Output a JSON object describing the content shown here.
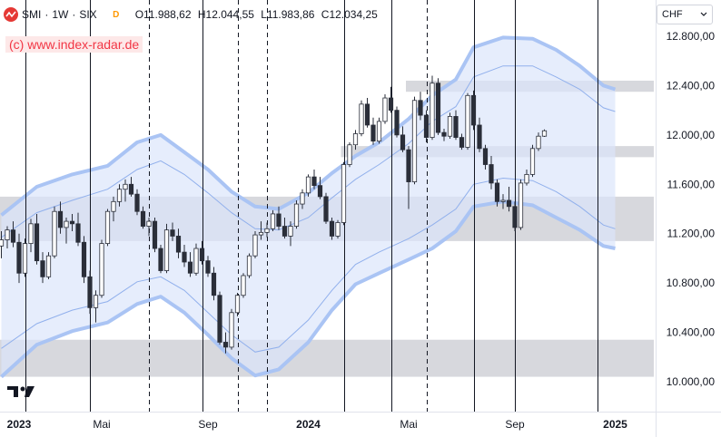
{
  "header": {
    "symbol": "SMI",
    "interval": "1W",
    "exchange": "SIX",
    "delayed_badge": "D",
    "open": "O11.988,62",
    "high": "H12.044,55",
    "low": "L11.983,86",
    "close": "C12.034,25"
  },
  "copyright": "(c) www.index-radar.de",
  "currency": {
    "label": "CHF"
  },
  "colors": {
    "band_fill": "#dbe6fb",
    "band_edge": "#aac4f4",
    "band_inner": "#91b0ec",
    "zone": "#c9cbd2",
    "candle_up": "#ffffff",
    "candle_down": "#2a2e39",
    "accent_red": "#f23645"
  },
  "chart_data": {
    "type": "candlestick",
    "title": "",
    "y_axis": {
      "range": [
        9800,
        13100
      ],
      "ticks": [
        10000,
        10400,
        10800,
        11200,
        11600,
        12000,
        12400,
        12800
      ],
      "tick_labels": [
        "10.000,00",
        "10.400,00",
        "10.800,00",
        "11.200,00",
        "11.600,00",
        "12.000,00",
        "12.400,00",
        "12.800,00"
      ]
    },
    "x_axis": {
      "ticks": [
        {
          "week": 3,
          "label": "2023",
          "bold": true
        },
        {
          "week": 17,
          "label": "Mai",
          "bold": false
        },
        {
          "week": 35,
          "label": "Sep",
          "bold": false
        },
        {
          "week": 52,
          "label": "2024",
          "bold": true
        },
        {
          "week": 69,
          "label": "Mai",
          "bold": false
        },
        {
          "week": 87,
          "label": "Sep",
          "bold": false
        },
        {
          "week": 104,
          "label": "2025",
          "bold": true
        }
      ]
    },
    "vertical_lines": [
      {
        "week": 4,
        "style": "solid"
      },
      {
        "week": 15,
        "style": "solid"
      },
      {
        "week": 25,
        "style": "dashed"
      },
      {
        "week": 34,
        "style": "solid"
      },
      {
        "week": 40,
        "style": "dashed"
      },
      {
        "week": 45,
        "style": "dashed"
      },
      {
        "week": 58,
        "style": "solid"
      },
      {
        "week": 66,
        "style": "solid"
      },
      {
        "week": 72,
        "style": "dashed"
      },
      {
        "week": 80,
        "style": "solid"
      },
      {
        "week": 87,
        "style": "solid"
      },
      {
        "week": 101,
        "style": "solid"
      }
    ],
    "zones": [
      {
        "from_week": 0,
        "to_week": 114,
        "low": 10040,
        "high": 10340
      },
      {
        "from_week": 0,
        "to_week": 114,
        "low": 11140,
        "high": 11500
      },
      {
        "from_week": 58,
        "to_week": 114,
        "low": 11820,
        "high": 11910
      },
      {
        "from_week": 69,
        "to_week": 114,
        "low": 12350,
        "high": 12440
      }
    ],
    "envelope": {
      "upper": [
        [
          0,
          11350
        ],
        [
          6,
          11580
        ],
        [
          12,
          11680
        ],
        [
          18,
          11750
        ],
        [
          23,
          11940
        ],
        [
          27,
          12000
        ],
        [
          31,
          11860
        ],
        [
          35,
          11720
        ],
        [
          39,
          11540
        ],
        [
          43,
          11420
        ],
        [
          47,
          11400
        ],
        [
          52,
          11530
        ],
        [
          56,
          11690
        ],
        [
          60,
          11830
        ],
        [
          64,
          11940
        ],
        [
          69,
          12130
        ],
        [
          73,
          12320
        ],
        [
          77,
          12450
        ],
        [
          80,
          12710
        ],
        [
          85,
          12790
        ],
        [
          90,
          12780
        ],
        [
          94,
          12690
        ],
        [
          98,
          12560
        ],
        [
          102,
          12400
        ],
        [
          104,
          12370
        ]
      ],
      "upper_inner": [
        [
          0,
          11170
        ],
        [
          6,
          11370
        ],
        [
          12,
          11470
        ],
        [
          18,
          11560
        ],
        [
          23,
          11720
        ],
        [
          27,
          11790
        ],
        [
          31,
          11680
        ],
        [
          35,
          11530
        ],
        [
          39,
          11370
        ],
        [
          43,
          11240
        ],
        [
          47,
          11230
        ],
        [
          52,
          11330
        ],
        [
          56,
          11490
        ],
        [
          60,
          11640
        ],
        [
          64,
          11760
        ],
        [
          69,
          11930
        ],
        [
          73,
          12110
        ],
        [
          77,
          12230
        ],
        [
          80,
          12470
        ],
        [
          85,
          12560
        ],
        [
          90,
          12560
        ],
        [
          94,
          12470
        ],
        [
          98,
          12370
        ],
        [
          102,
          12220
        ],
        [
          104,
          12190
        ]
      ],
      "lower_inner": [
        [
          0,
          10270
        ],
        [
          6,
          10470
        ],
        [
          12,
          10580
        ],
        [
          18,
          10650
        ],
        [
          23,
          10810
        ],
        [
          27,
          10850
        ],
        [
          31,
          10740
        ],
        [
          35,
          10560
        ],
        [
          39,
          10380
        ],
        [
          43,
          10240
        ],
        [
          47,
          10280
        ],
        [
          52,
          10500
        ],
        [
          56,
          10740
        ],
        [
          60,
          10950
        ],
        [
          64,
          11050
        ],
        [
          69,
          11160
        ],
        [
          73,
          11270
        ],
        [
          77,
          11400
        ],
        [
          80,
          11600
        ],
        [
          85,
          11650
        ],
        [
          90,
          11630
        ],
        [
          94,
          11540
        ],
        [
          98,
          11420
        ],
        [
          102,
          11270
        ],
        [
          104,
          11240
        ]
      ],
      "lower": [
        [
          0,
          10040
        ],
        [
          6,
          10300
        ],
        [
          12,
          10410
        ],
        [
          18,
          10480
        ],
        [
          23,
          10630
        ],
        [
          27,
          10690
        ],
        [
          31,
          10560
        ],
        [
          35,
          10380
        ],
        [
          39,
          10190
        ],
        [
          43,
          10050
        ],
        [
          47,
          10100
        ],
        [
          52,
          10320
        ],
        [
          56,
          10580
        ],
        [
          60,
          10790
        ],
        [
          64,
          10880
        ],
        [
          69,
          10990
        ],
        [
          73,
          11080
        ],
        [
          77,
          11220
        ],
        [
          80,
          11420
        ],
        [
          85,
          11460
        ],
        [
          90,
          11430
        ],
        [
          94,
          11330
        ],
        [
          98,
          11230
        ],
        [
          102,
          11100
        ],
        [
          104,
          11080
        ]
      ]
    },
    "candles": [
      [
        11100,
        11220,
        11000,
        11150
      ],
      [
        11150,
        11260,
        11080,
        11230
      ],
      [
        11230,
        11300,
        11090,
        11130
      ],
      [
        11130,
        11200,
        10800,
        10880
      ],
      [
        10880,
        11160,
        10850,
        11120
      ],
      [
        11120,
        11320,
        11050,
        11280
      ],
      [
        11280,
        11360,
        10950,
        10980
      ],
      [
        10980,
        11050,
        10800,
        10850
      ],
      [
        10850,
        11050,
        10830,
        11020
      ],
      [
        11020,
        11420,
        11000,
        11380
      ],
      [
        11380,
        11460,
        11200,
        11250
      ],
      [
        11250,
        11330,
        11120,
        11300
      ],
      [
        11300,
        11360,
        11220,
        11280
      ],
      [
        11280,
        11370,
        11100,
        11130
      ],
      [
        11130,
        11180,
        10800,
        10850
      ],
      [
        10850,
        10900,
        10550,
        10600
      ],
      [
        10600,
        10740,
        10480,
        10700
      ],
      [
        10700,
        11150,
        10680,
        11120
      ],
      [
        11120,
        11400,
        11100,
        11380
      ],
      [
        11380,
        11500,
        11300,
        11460
      ],
      [
        11460,
        11600,
        11420,
        11560
      ],
      [
        11560,
        11640,
        11460,
        11600
      ],
      [
        11600,
        11660,
        11500,
        11520
      ],
      [
        11520,
        11560,
        11350,
        11380
      ],
      [
        11380,
        11420,
        11240,
        11260
      ],
      [
        11260,
        11330,
        11180,
        11300
      ],
      [
        11300,
        11330,
        11050,
        11080
      ],
      [
        11080,
        11110,
        10880,
        10900
      ],
      [
        10900,
        11280,
        10880,
        11230
      ],
      [
        11230,
        11290,
        11140,
        11180
      ],
      [
        11180,
        11240,
        11000,
        11050
      ],
      [
        11050,
        11110,
        10930,
        10970
      ],
      [
        10970,
        11050,
        10850,
        10880
      ],
      [
        10880,
        11120,
        10860,
        11080
      ],
      [
        11080,
        11140,
        10950,
        10980
      ],
      [
        10980,
        11020,
        10850,
        10880
      ],
      [
        10880,
        10930,
        10660,
        10700
      ],
      [
        10700,
        10730,
        10300,
        10320
      ],
      [
        10320,
        10400,
        10230,
        10280
      ],
      [
        10280,
        10590,
        10260,
        10560
      ],
      [
        10560,
        10720,
        10530,
        10700
      ],
      [
        10700,
        10880,
        10680,
        10860
      ],
      [
        10860,
        11040,
        10840,
        11020
      ],
      [
        11020,
        11220,
        11000,
        11190
      ],
      [
        11190,
        11300,
        11150,
        11210
      ],
      [
        11210,
        11290,
        11170,
        11240
      ],
      [
        11240,
        11390,
        11220,
        11360
      ],
      [
        11360,
        11420,
        11230,
        11260
      ],
      [
        11260,
        11330,
        11160,
        11180
      ],
      [
        11180,
        11300,
        11100,
        11260
      ],
      [
        11260,
        11470,
        11240,
        11440
      ],
      [
        11440,
        11560,
        11400,
        11530
      ],
      [
        11530,
        11680,
        11500,
        11660
      ],
      [
        11660,
        11720,
        11560,
        11590
      ],
      [
        11590,
        11660,
        11480,
        11500
      ],
      [
        11500,
        11530,
        11280,
        11300
      ],
      [
        11300,
        11330,
        11150,
        11180
      ],
      [
        11180,
        11310,
        11160,
        11290
      ],
      [
        11290,
        11780,
        11270,
        11760
      ],
      [
        11760,
        11940,
        11740,
        11920
      ],
      [
        11920,
        12040,
        11880,
        12010
      ],
      [
        12010,
        12280,
        11990,
        12250
      ],
      [
        12250,
        12300,
        12060,
        12080
      ],
      [
        12080,
        12140,
        11920,
        11950
      ],
      [
        11950,
        12140,
        11930,
        12110
      ],
      [
        12110,
        12330,
        12090,
        12300
      ],
      [
        12300,
        12390,
        12180,
        12200
      ],
      [
        12200,
        12230,
        11980,
        12000
      ],
      [
        12000,
        12070,
        11860,
        11880
      ],
      [
        11880,
        11910,
        11400,
        11620
      ],
      [
        11620,
        12310,
        11600,
        12280
      ],
      [
        12280,
        12350,
        12120,
        12160
      ],
      [
        12160,
        12200,
        11940,
        11980
      ],
      [
        11980,
        12480,
        11960,
        12420
      ],
      [
        12420,
        12460,
        12000,
        12020
      ],
      [
        12020,
        12050,
        11950,
        11990
      ],
      [
        11990,
        12180,
        11970,
        12150
      ],
      [
        12150,
        12200,
        11960,
        11980
      ],
      [
        11980,
        12010,
        11880,
        11900
      ],
      [
        11900,
        12340,
        11880,
        12320
      ],
      [
        12320,
        12360,
        12040,
        12080
      ],
      [
        12080,
        12140,
        11860,
        11890
      ],
      [
        11890,
        11920,
        11720,
        11760
      ],
      [
        11760,
        11830,
        11560,
        11610
      ],
      [
        11610,
        11640,
        11420,
        11460
      ],
      [
        11460,
        11520,
        11400,
        11470
      ],
      [
        11470,
        11580,
        11380,
        11420
      ],
      [
        11420,
        11460,
        11220,
        11250
      ],
      [
        11250,
        11640,
        11230,
        11610
      ],
      [
        11610,
        11720,
        11590,
        11680
      ],
      [
        11680,
        11920,
        11660,
        11890
      ],
      [
        11890,
        12020,
        11870,
        11990
      ],
      [
        11990,
        12045,
        11984,
        12034
      ]
    ]
  }
}
